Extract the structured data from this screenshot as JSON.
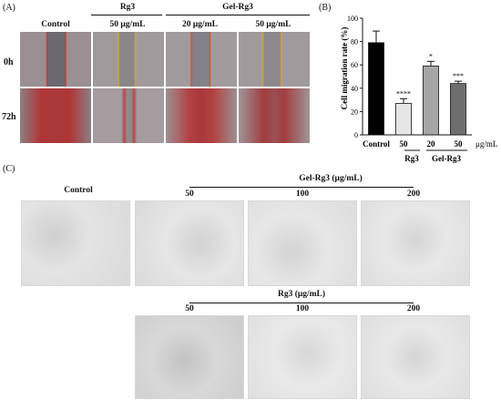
{
  "panel_a": {
    "label": "(A)",
    "group_rg3": "Rg3",
    "group_gel": "Gel-Rg3",
    "columns": [
      "Control",
      "50 μg/mL",
      "20 μg/mL",
      "50 μg/mL"
    ],
    "rows": [
      "0h",
      "72h"
    ]
  },
  "panel_b": {
    "label": "(B)",
    "unit_label": "μg/mL",
    "group_rg3": "Rg3",
    "group_gel": "Gel-Rg3"
  },
  "chart_data": {
    "type": "bar",
    "categories": [
      "Control",
      "50",
      "20",
      "50"
    ],
    "values": [
      79,
      27,
      59,
      44
    ],
    "errors": [
      10,
      4,
      4,
      2
    ],
    "significance": [
      "",
      "****",
      "*",
      "***"
    ],
    "bar_colors": [
      "#000000",
      "#e6e6e6",
      "#a6a6a6",
      "#6f6f6f"
    ],
    "ylabel": "Cell migration rate (%)",
    "ylim": [
      0,
      100
    ],
    "yticks": [
      0,
      20,
      40,
      60,
      80,
      100
    ]
  },
  "panel_c": {
    "label": "(C)",
    "gel_title": "Gel-Rg3 (μg/mL)",
    "rg3_title": "Rg3 (μg/mL)",
    "control_label": "Control",
    "gel_doses": [
      "50",
      "100",
      "200"
    ],
    "rg3_doses": [
      "50",
      "100",
      "200"
    ]
  }
}
